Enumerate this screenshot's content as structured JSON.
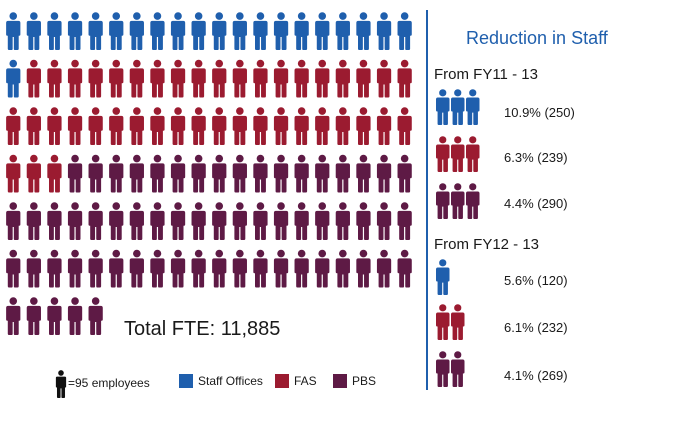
{
  "chart_data": {
    "type": "pictogram",
    "unit_value": 95,
    "unit_label": "=95 employees",
    "total_label": "Total FTE: 11,885",
    "series": [
      {
        "name": "Staff Offices",
        "icons": 20.8,
        "color": "#1f5fad"
      },
      {
        "name": "FAS",
        "icons": 41.4,
        "color": "#9b1b30"
      },
      {
        "name": "PBS",
        "icons": 62.8,
        "color": "#5e1a45"
      }
    ],
    "reduction": {
      "title": "Reduction in Staff",
      "periods": [
        {
          "label": "From FY11 - 13",
          "items": [
            {
              "series": "Staff Offices",
              "icons": 3,
              "percent": 10.9,
              "count": 250,
              "text": "10.9% (250)"
            },
            {
              "series": "FAS",
              "icons": 3,
              "percent": 6.3,
              "count": 239,
              "text": "6.3% (239)"
            },
            {
              "series": "PBS",
              "icons": 3,
              "percent": 4.4,
              "count": 290,
              "text": "4.4% (290)"
            }
          ]
        },
        {
          "label": "From FY12 - 13",
          "items": [
            {
              "series": "Staff Offices",
              "icons": 1.3,
              "percent": 5.6,
              "count": 120,
              "text": "5.6% (120)"
            },
            {
              "series": "FAS",
              "icons": 2.4,
              "percent": 6.1,
              "count": 232,
              "text": "6.1% (232)"
            },
            {
              "series": "PBS",
              "icons": 2.8,
              "percent": 4.1,
              "count": 269,
              "text": "4.1% (269)"
            }
          ]
        }
      ]
    }
  }
}
